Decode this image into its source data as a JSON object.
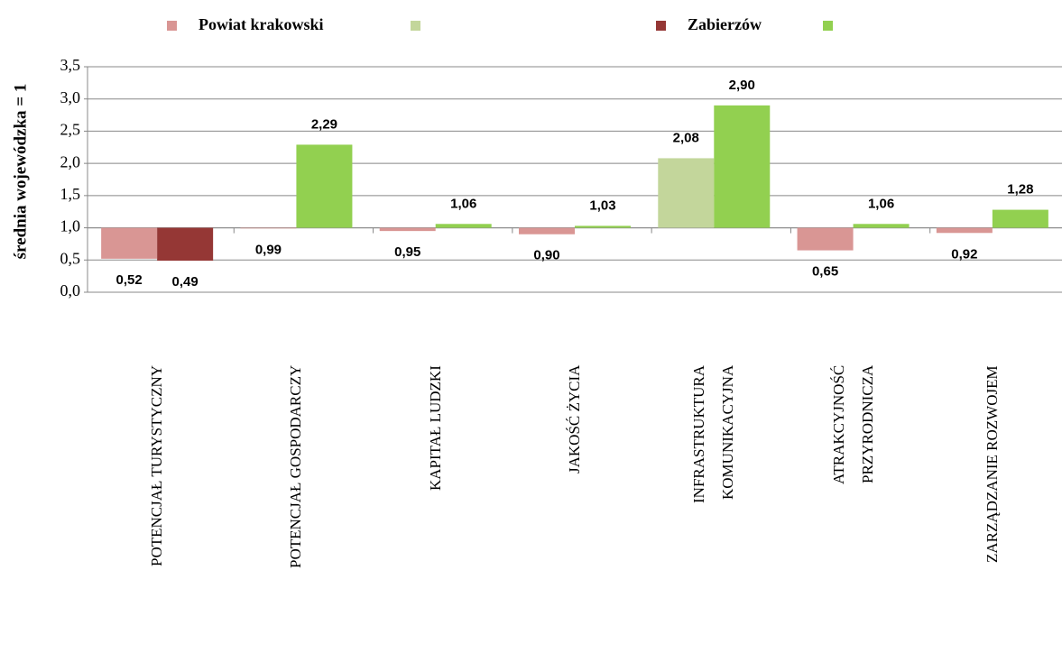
{
  "chart_data": {
    "type": "bar",
    "y_axis_label": "średnia wojewódzka = 1",
    "baseline": 1,
    "categories": [
      "POTENCJAŁ TURYSTYCZNY",
      "POTENCJAŁ GOSPODARCZY",
      "KAPITAŁ LUDZKI",
      "JAKOŚĆ ŻYCIA",
      "INFRASTRUKTURA\nKOMUNIKACYJNA",
      "ATRAKCYJNOŚĆ\nPRZYRODNICZA",
      "ZARZĄDZANIE ROZWOJEM"
    ],
    "series": [
      {
        "name": "Powiat krakowski",
        "color": "#d99694",
        "values": [
          0.52,
          0.99,
          0.95,
          0.9,
          null,
          0.65,
          0.92
        ],
        "value_labels": [
          "0,52",
          "0,99",
          "0,95",
          "0,90",
          null,
          "0,65",
          "0,92"
        ]
      },
      {
        "color": "#c3d69b",
        "values": [
          null,
          null,
          null,
          null,
          2.08,
          null,
          null
        ],
        "value_labels": [
          null,
          null,
          null,
          null,
          "2,08",
          null,
          null
        ]
      },
      {
        "name": "Zabierzów",
        "color": "#953735",
        "values": [
          0.49,
          null,
          null,
          null,
          null,
          null,
          null
        ],
        "value_labels": [
          "0,49",
          null,
          null,
          null,
          null,
          null,
          null
        ]
      },
      {
        "color": "#92d050",
        "values": [
          null,
          2.29,
          1.06,
          1.03,
          2.9,
          1.06,
          1.28
        ],
        "value_labels": [
          null,
          "2,29",
          "1,06",
          "1,03",
          "2,90",
          "1,06",
          "1,28"
        ]
      }
    ],
    "ylim": [
      0,
      3.5
    ],
    "yticks": [
      {
        "value": 0,
        "label": "0,0"
      },
      {
        "value": 0.5,
        "label": "0,5"
      },
      {
        "value": 1,
        "label": "1,0"
      },
      {
        "value": 1.5,
        "label": "1,5"
      },
      {
        "value": 2,
        "label": "2,0"
      },
      {
        "value": 2.5,
        "label": "2,5"
      },
      {
        "value": 3,
        "label": "3,0"
      },
      {
        "value": 3.5,
        "label": "3,5"
      }
    ],
    "grid": true
  }
}
